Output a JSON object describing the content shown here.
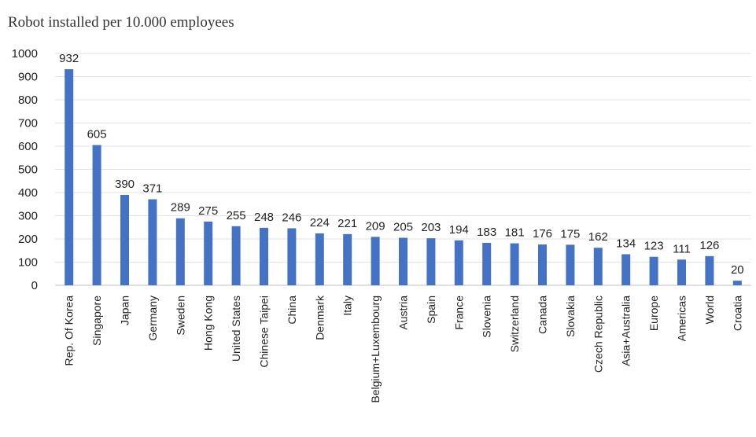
{
  "chart_data": {
    "type": "bar",
    "title": "Robot installed per 10.000 employees",
    "xlabel": "",
    "ylabel": "",
    "ylim": [
      0,
      1000
    ],
    "yticks": [
      0,
      100,
      200,
      300,
      400,
      500,
      600,
      700,
      800,
      900,
      1000
    ],
    "grid": true,
    "legend": "none",
    "bar_color": "#4472c4",
    "categories": [
      "Rep. Of Korea",
      "Singapore",
      "Japan",
      "Germany",
      "Sweden",
      "Hong Kong",
      "United States",
      "Chinese Taipei",
      "China",
      "Denmark",
      "Italy",
      "Belgium+Luxembourg",
      "Austria",
      "Spain",
      "France",
      "Slovenia",
      "Switzerland",
      "Canada",
      "Slovakia",
      "Czech Republic",
      "Asia+Australia",
      "Europe",
      "Americas",
      "World",
      "Croatia"
    ],
    "values": [
      932,
      605,
      390,
      371,
      289,
      275,
      255,
      248,
      246,
      224,
      221,
      209,
      205,
      203,
      194,
      183,
      181,
      176,
      175,
      162,
      134,
      123,
      111,
      126,
      20
    ]
  }
}
